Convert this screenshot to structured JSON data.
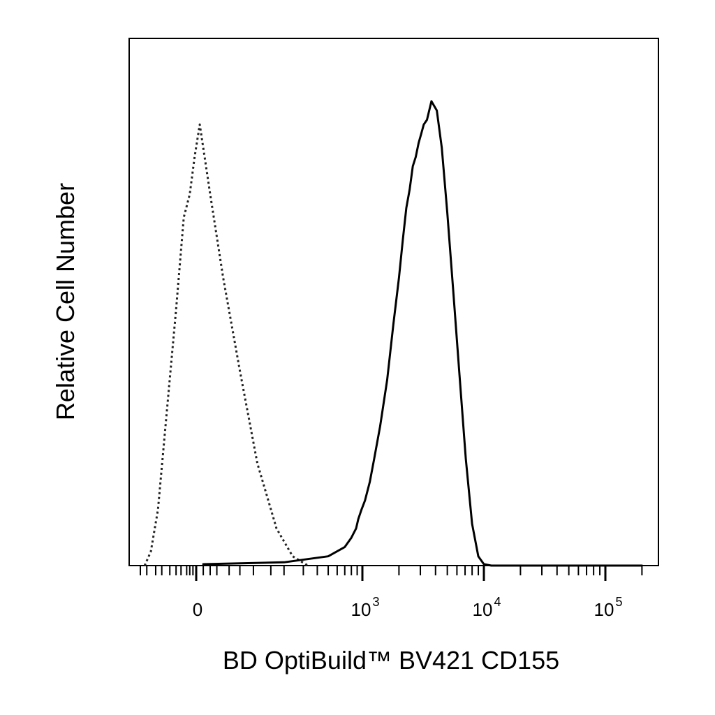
{
  "chart_data": {
    "type": "line",
    "xlabel": "BD OptiBuild™ BV421 CD155",
    "ylabel": "Relative Cell Number",
    "x_scale": "biexponential",
    "x_ticks": [
      {
        "value": 0,
        "base": "0",
        "exp": ""
      },
      {
        "value": 1000,
        "base": "10",
        "exp": "3"
      },
      {
        "value": 10000,
        "base": "10",
        "exp": "4"
      },
      {
        "value": 100000,
        "base": "10",
        "exp": "5"
      }
    ],
    "x_tick_label_units": [
      "0",
      "10^3",
      "10^4",
      "10^5"
    ],
    "xlim": [
      -500,
      200000
    ],
    "ylim": [
      0,
      1
    ],
    "grid": false,
    "legend": "none",
    "series": [
      {
        "style": "dotted",
        "color": "#222222",
        "x": [
          -330,
          -250,
          -180,
          -120,
          -70,
          -40,
          -20,
          -5,
          5,
          20,
          40,
          70,
          110,
          170,
          240,
          330
        ],
        "y": [
          0.0,
          0.03,
          0.12,
          0.32,
          0.55,
          0.75,
          0.8,
          0.88,
          0.95,
          0.8,
          0.62,
          0.42,
          0.22,
          0.08,
          0.02,
          0.0
        ]
      },
      {
        "style": "solid",
        "color": "#000000",
        "x": [
          10,
          200,
          500,
          700,
          800,
          880,
          920,
          980,
          1050,
          1150,
          1250,
          1400,
          1600,
          1800,
          2000,
          2150,
          2300,
          2450,
          2600,
          2750,
          2900,
          3050,
          3200,
          3400,
          3700,
          4100,
          4500,
          5000,
          5600,
          6300,
          7100,
          8000,
          9000,
          10000,
          11500,
          20000,
          50000,
          100000,
          200000
        ],
        "y": [
          0.003,
          0.007,
          0.02,
          0.04,
          0.06,
          0.08,
          0.1,
          0.12,
          0.14,
          0.18,
          0.23,
          0.3,
          0.4,
          0.52,
          0.62,
          0.7,
          0.77,
          0.81,
          0.86,
          0.88,
          0.91,
          0.93,
          0.95,
          0.96,
          1.0,
          0.98,
          0.9,
          0.76,
          0.59,
          0.41,
          0.23,
          0.09,
          0.02,
          0.003,
          0.0,
          0.0,
          0.0,
          0.0,
          0.0
        ]
      }
    ]
  }
}
